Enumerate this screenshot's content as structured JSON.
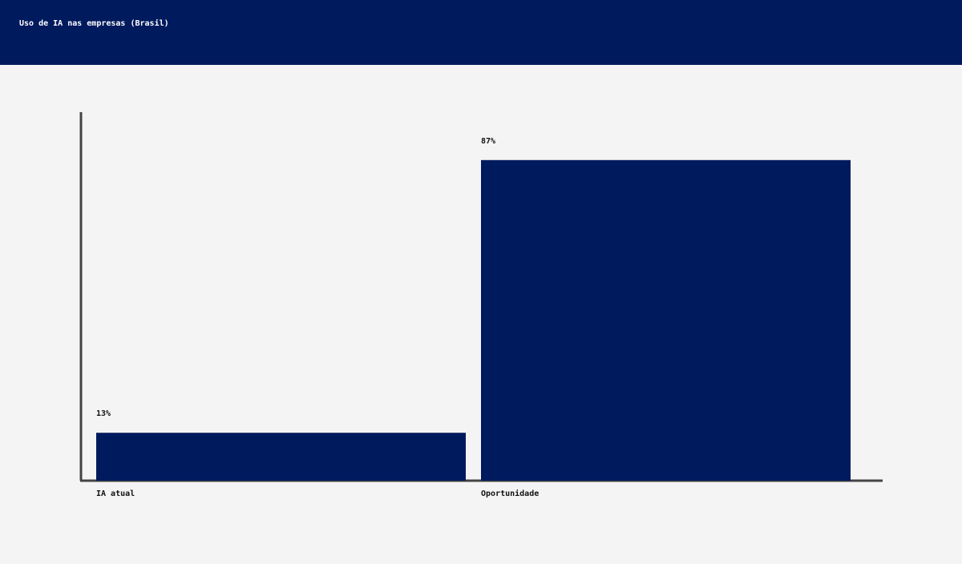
{
  "header": {
    "title": "Uso de IA nas empresas (Brasil)"
  },
  "colors": {
    "header_bg": "#001a5e",
    "bar": "#001a5e",
    "axis": "#444444",
    "background": "#f4f4f4"
  },
  "chart_data": {
    "type": "bar",
    "categories": [
      "IA atual",
      "Oportunidade"
    ],
    "values": [
      13,
      87
    ],
    "value_labels": [
      "13%",
      "87%"
    ],
    "title": "",
    "xlabel": "",
    "ylabel": "",
    "ylim": [
      0,
      100
    ],
    "grid": false,
    "legend": "none"
  }
}
